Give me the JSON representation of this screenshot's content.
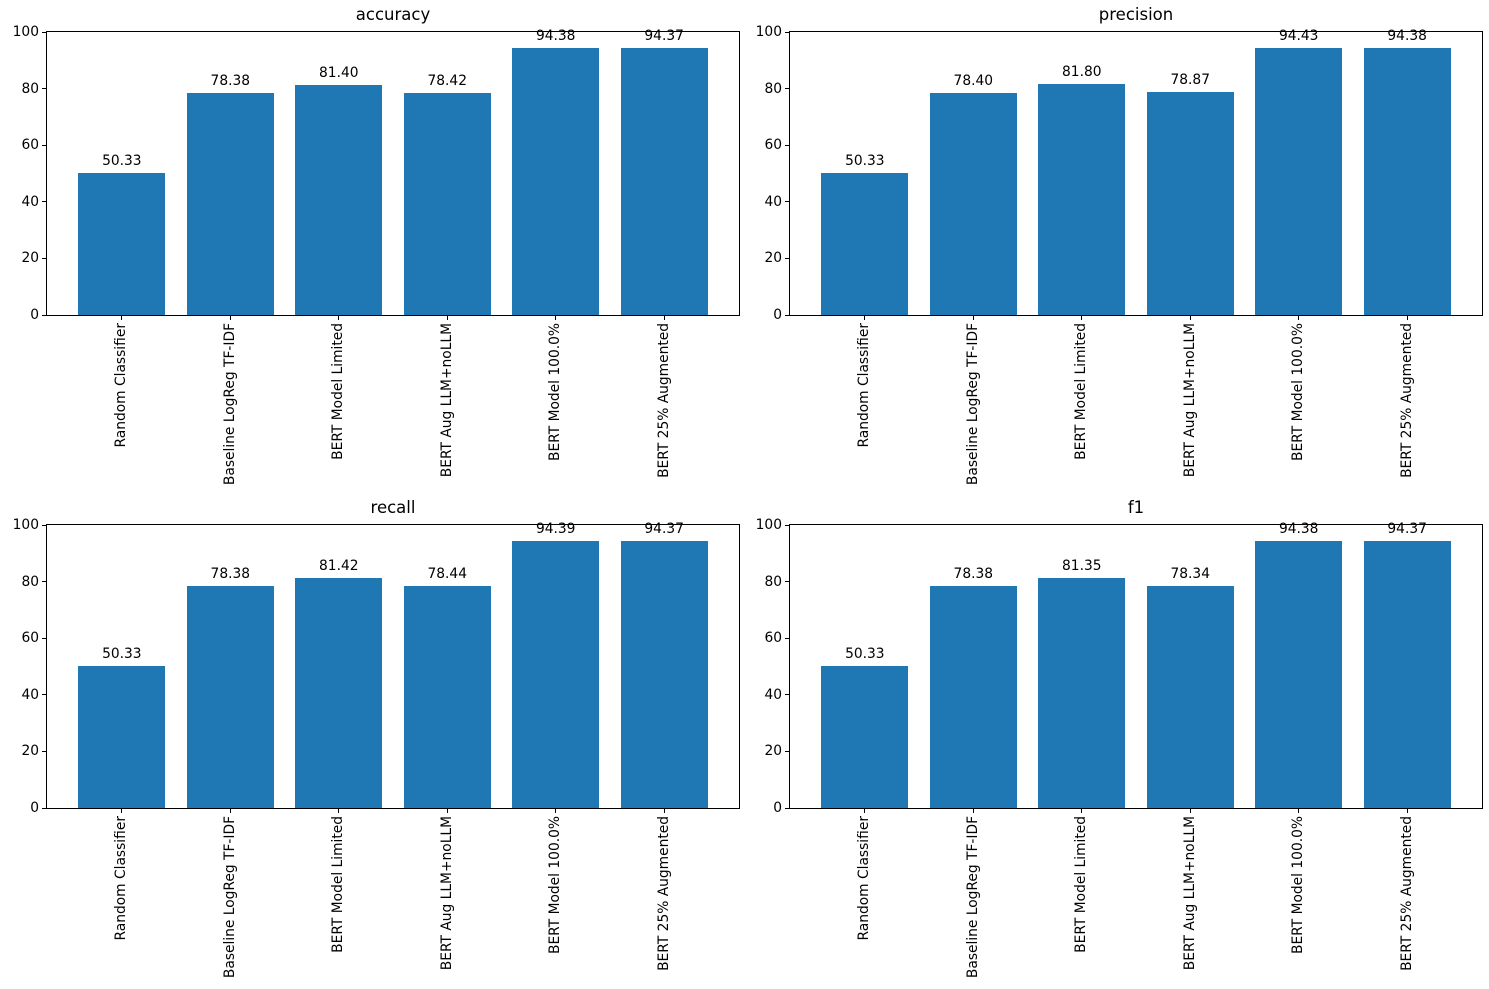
{
  "figure": {
    "background": "#ffffff",
    "bar_color": "#1f77b4",
    "axis_color": "#000000"
  },
  "chart_data": [
    {
      "type": "bar",
      "title": "accuracy",
      "categories": [
        "Random Classifier",
        "Baseline LogReg TF-IDF",
        "BERT Model Limited",
        "BERT Aug LLM+noLLM",
        "BERT Model 100.0%",
        "BERT 25% Augmented"
      ],
      "values": [
        50.33,
        78.38,
        81.4,
        78.42,
        94.38,
        94.37
      ],
      "value_labels": [
        "50.33",
        "78.38",
        "81.40",
        "78.42",
        "94.38",
        "94.37"
      ],
      "xlabel": "",
      "ylabel": "",
      "ylim": [
        0,
        100
      ],
      "yticks": [
        0,
        20,
        40,
        60,
        80,
        100
      ],
      "grid": false,
      "legend": null,
      "bar_color": "#1f77b4"
    },
    {
      "type": "bar",
      "title": "precision",
      "categories": [
        "Random Classifier",
        "Baseline LogReg TF-IDF",
        "BERT Model Limited",
        "BERT Aug LLM+noLLM",
        "BERT Model 100.0%",
        "BERT 25% Augmented"
      ],
      "values": [
        50.33,
        78.4,
        81.8,
        78.87,
        94.43,
        94.38
      ],
      "value_labels": [
        "50.33",
        "78.40",
        "81.80",
        "78.87",
        "94.43",
        "94.38"
      ],
      "xlabel": "",
      "ylabel": "",
      "ylim": [
        0,
        100
      ],
      "yticks": [
        0,
        20,
        40,
        60,
        80,
        100
      ],
      "grid": false,
      "legend": null,
      "bar_color": "#1f77b4"
    },
    {
      "type": "bar",
      "title": "recall",
      "categories": [
        "Random Classifier",
        "Baseline LogReg TF-IDF",
        "BERT Model Limited",
        "BERT Aug LLM+noLLM",
        "BERT Model 100.0%",
        "BERT 25% Augmented"
      ],
      "values": [
        50.33,
        78.38,
        81.42,
        78.44,
        94.39,
        94.37
      ],
      "value_labels": [
        "50.33",
        "78.38",
        "81.42",
        "78.44",
        "94.39",
        "94.37"
      ],
      "xlabel": "",
      "ylabel": "",
      "ylim": [
        0,
        100
      ],
      "yticks": [
        0,
        20,
        40,
        60,
        80,
        100
      ],
      "grid": false,
      "legend": null,
      "bar_color": "#1f77b4"
    },
    {
      "type": "bar",
      "title": "f1",
      "categories": [
        "Random Classifier",
        "Baseline LogReg TF-IDF",
        "BERT Model Limited",
        "BERT Aug LLM+noLLM",
        "BERT Model 100.0%",
        "BERT 25% Augmented"
      ],
      "values": [
        50.33,
        78.38,
        81.35,
        78.34,
        94.38,
        94.37
      ],
      "value_labels": [
        "50.33",
        "78.38",
        "81.35",
        "78.34",
        "94.38",
        "94.37"
      ],
      "xlabel": "",
      "ylabel": "",
      "ylim": [
        0,
        100
      ],
      "yticks": [
        0,
        20,
        40,
        60,
        80,
        100
      ],
      "grid": false,
      "legend": null,
      "bar_color": "#1f77b4"
    }
  ]
}
